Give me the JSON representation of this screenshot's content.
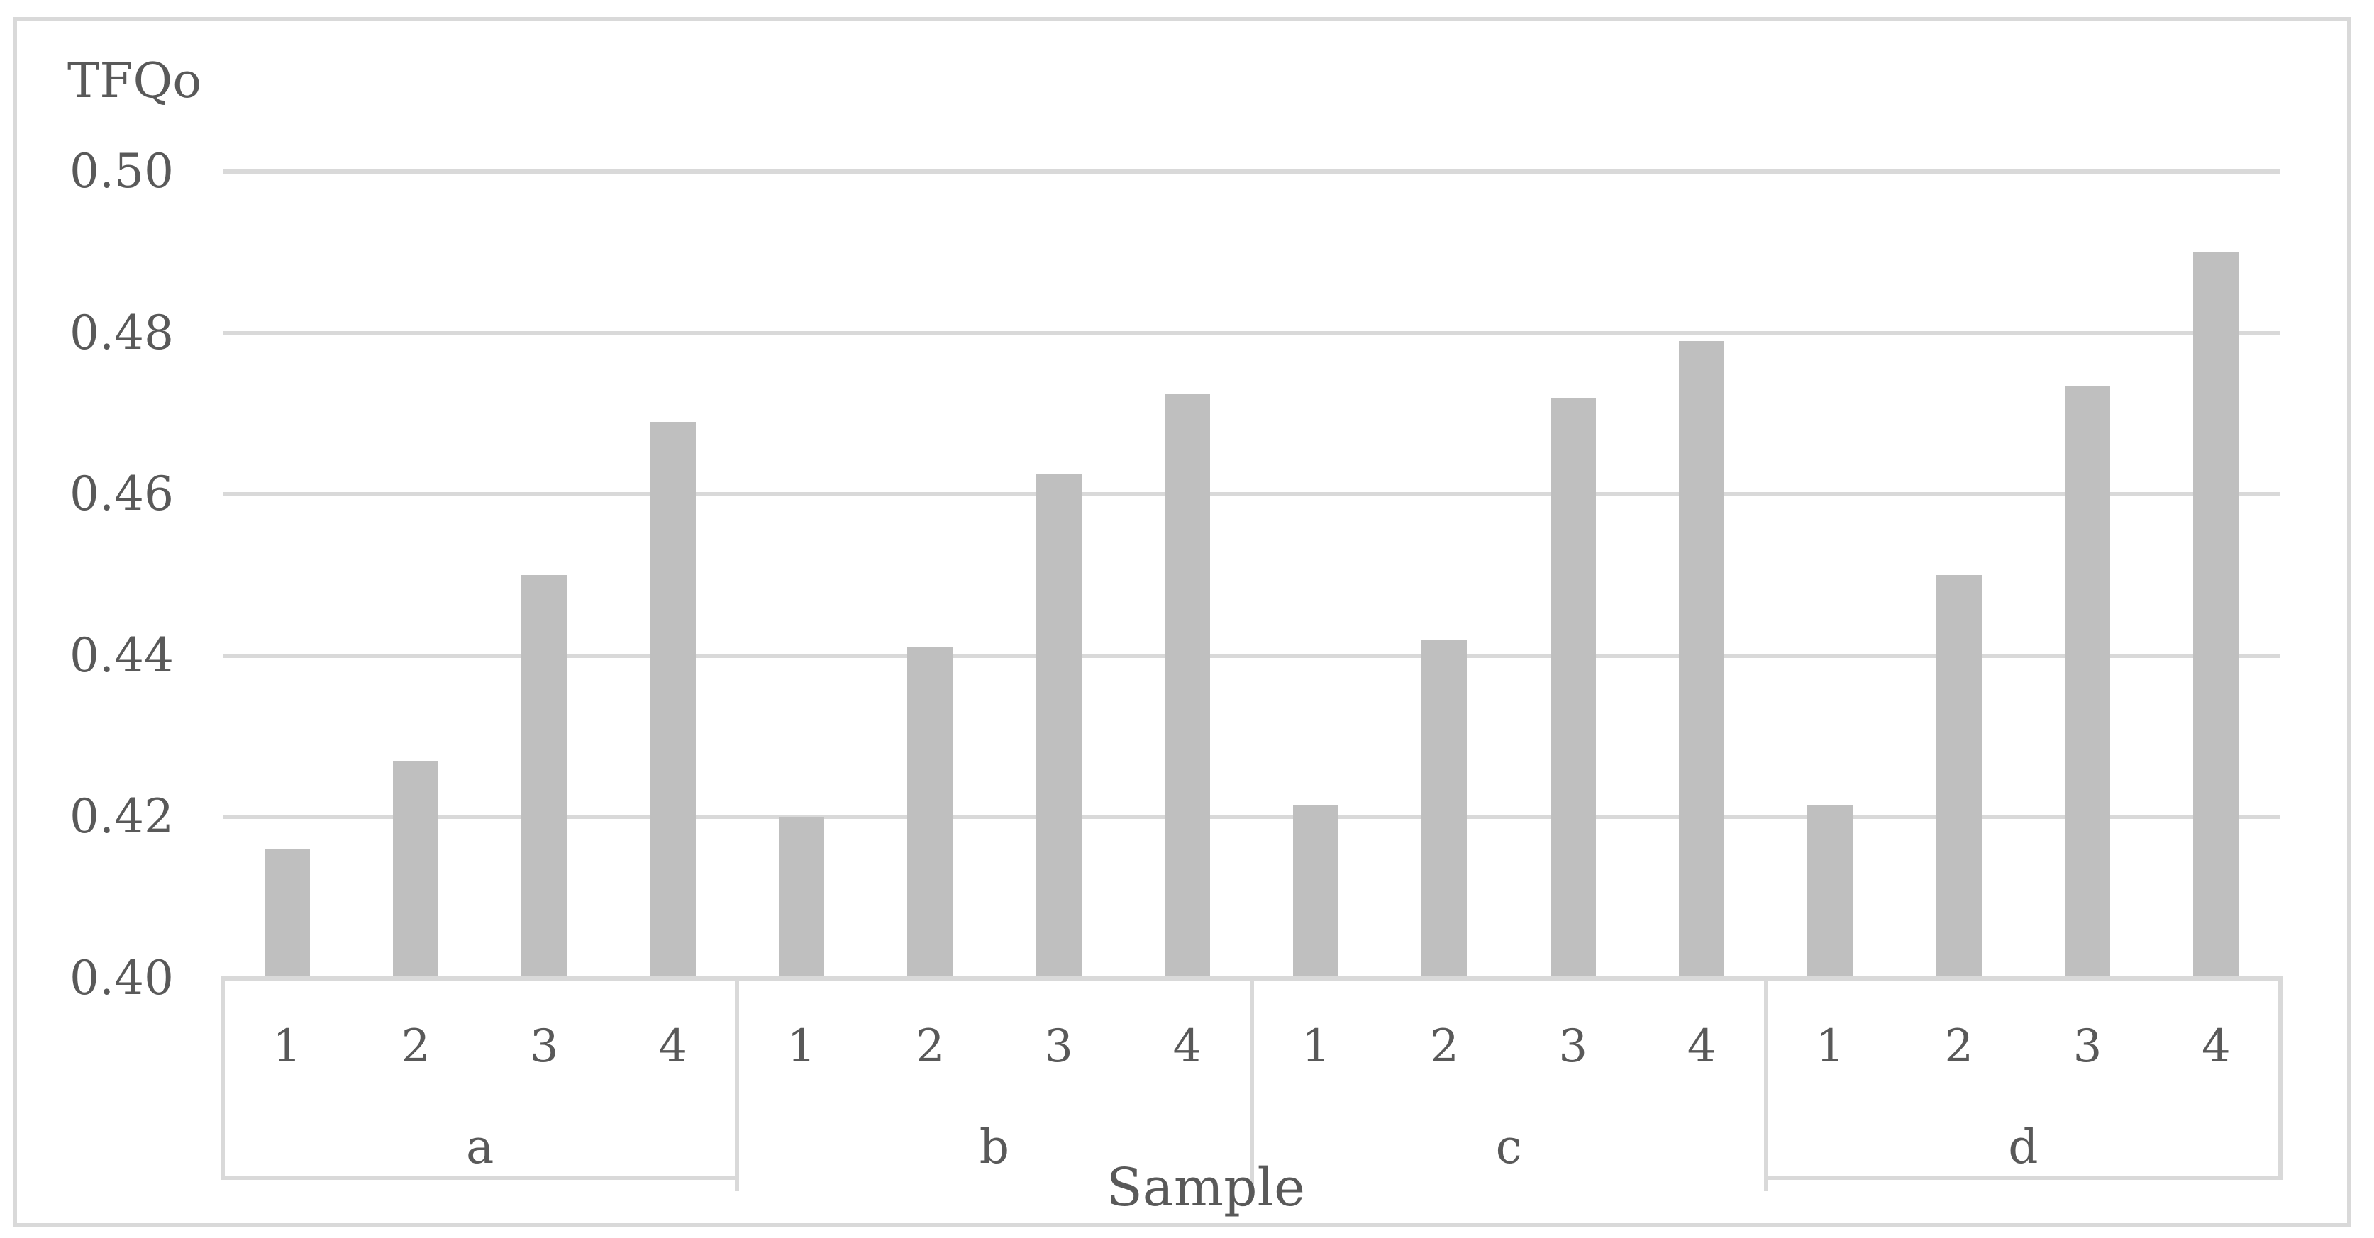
{
  "figure": {
    "y_axis_title": "TFQo",
    "x_axis_title": "Sample"
  },
  "colors": {
    "bar_fill": "#bfbfbf",
    "gridline": "#d9d9d9",
    "figure_border": "#d9d9d9",
    "text": "#595959",
    "background": "#ffffff"
  },
  "chart_data": {
    "type": "bar",
    "title": "",
    "ylabel": "TFQo",
    "xlabel": "Sample",
    "ylim": [
      0.4,
      0.5
    ],
    "yticks": [
      0.4,
      0.42,
      0.44,
      0.46,
      0.48,
      0.5
    ],
    "ytick_labels": [
      "0.40",
      "0.42",
      "0.44",
      "0.46",
      "0.48",
      "0.50"
    ],
    "grid": "horizontal",
    "legend": "none",
    "groups": [
      "a",
      "b",
      "c",
      "d"
    ],
    "categories_per_group": [
      "1",
      "2",
      "3",
      "4"
    ],
    "series": [
      {
        "name": "TFQo",
        "values": [
          [
            0.416,
            0.427,
            0.45,
            0.469
          ],
          [
            0.42,
            0.441,
            0.4625,
            0.4725
          ],
          [
            0.4215,
            0.442,
            0.472,
            0.479
          ],
          [
            0.4215,
            0.45,
            0.4735,
            0.49
          ]
        ]
      }
    ]
  }
}
